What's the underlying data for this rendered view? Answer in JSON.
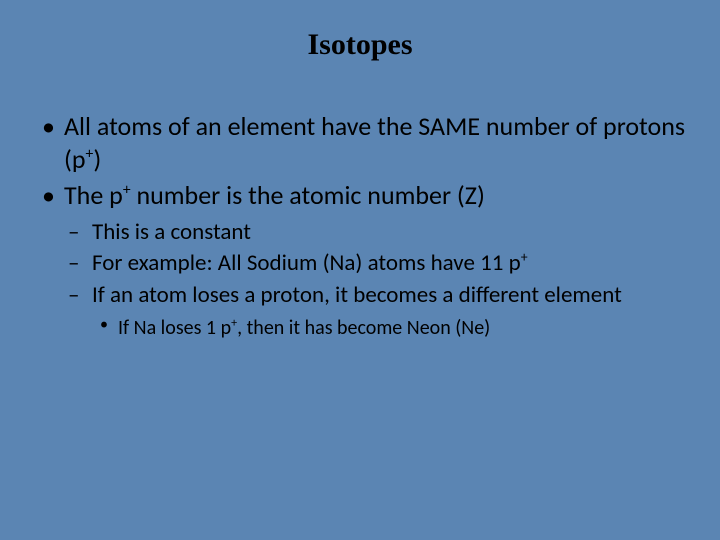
{
  "title": "Isotopes",
  "bullets": {
    "b1_pre": "All atoms of an element have the SAME number of protons (p",
    "b1_sup": "+",
    "b1_post": ")",
    "b2_pre": "The p",
    "b2_sup": "+",
    "b2_post": " number is the atomic number (Z)",
    "b2a": "This is a constant",
    "b2b_pre": "For example:  All Sodium (Na) atoms have 11 p",
    "b2b_sup": "+",
    "b2c": "If an atom loses a proton, it becomes a different element",
    "b2c1_pre": "If Na loses 1 p",
    "b2c1_sup": "+",
    "b2c1_post": ", then it has become Neon (Ne)"
  },
  "colors": {
    "background": "#5b85b3",
    "text": "#000000"
  }
}
